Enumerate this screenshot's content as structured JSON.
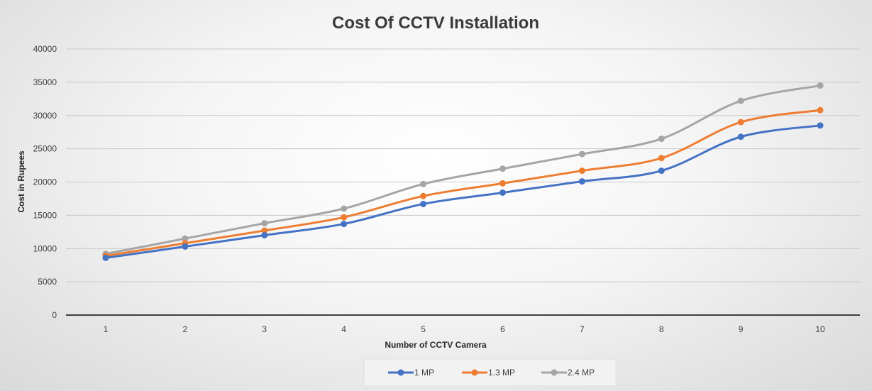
{
  "chart_data": {
    "type": "line",
    "title": "Cost Of CCTV Installation",
    "xlabel": "Number of CCTV Camera",
    "ylabel": "Cost in Rupees",
    "x": [
      "1",
      "2",
      "3",
      "4",
      "5",
      "6",
      "7",
      "8",
      "9",
      "10"
    ],
    "ylim": [
      0,
      40000
    ],
    "yticks": [
      "0",
      "5000",
      "10000",
      "15000",
      "20000",
      "25000",
      "30000",
      "35000",
      "40000"
    ],
    "grid": true,
    "legend_position": "bottom",
    "series": [
      {
        "name": "1 MP",
        "color": "#4472c4",
        "values": [
          8600,
          10300,
          12000,
          13700,
          16700,
          18400,
          20100,
          21700,
          26800,
          28500
        ]
      },
      {
        "name": "1.3 MP",
        "color": "#ed7d31",
        "values": [
          8900,
          10800,
          12700,
          14700,
          17900,
          19800,
          21700,
          23600,
          29000,
          30800
        ]
      },
      {
        "name": "2.4 MP",
        "color": "#a5a5a5",
        "values": [
          9200,
          11500,
          13800,
          16000,
          19700,
          22000,
          24200,
          26500,
          32200,
          34500
        ]
      }
    ]
  }
}
